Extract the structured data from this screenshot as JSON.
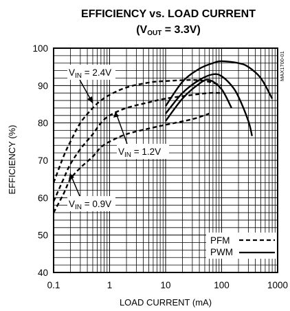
{
  "chart_data": {
    "type": "line",
    "title_line1": "EFFICIENCY vs. LOAD CURRENT",
    "title_line2_pre": "(V",
    "title_line2_sub": "OUT",
    "title_line2_post": " = 3.3V)",
    "xlabel": "LOAD CURRENT (mA)",
    "ylabel": "EFFICIENCY (%)",
    "x_scale": "log",
    "xlim": [
      0.1,
      1000
    ],
    "ylim": [
      40,
      100
    ],
    "x_ticks": [
      "0.1",
      "1",
      "10",
      "100",
      "1000"
    ],
    "y_ticks": [
      "40",
      "50",
      "60",
      "70",
      "80",
      "90",
      "100"
    ],
    "grid": true,
    "code": "MAX1700-01",
    "annotations": [
      {
        "pre": "V",
        "sub": "IN",
        "post": " = 2.4V"
      },
      {
        "pre": "V",
        "sub": "IN",
        "post": " = 1.2V"
      },
      {
        "pre": "V",
        "sub": "IN",
        "post": " = 0.9V"
      }
    ],
    "legend": {
      "placement": "bottom-right",
      "items": [
        "PFM",
        "PWM"
      ]
    },
    "series": [
      {
        "mode": "PFM",
        "x": [
          0.1,
          0.15,
          0.2,
          0.3,
          0.5,
          0.7,
          1,
          2,
          5,
          10,
          30,
          60,
          100
        ],
        "y": [
          64,
          71,
          75,
          80,
          84,
          86,
          87.5,
          89.5,
          90.8,
          91.2,
          91.5,
          91,
          90
        ]
      },
      {
        "mode": "PFM",
        "x": [
          0.1,
          0.15,
          0.2,
          0.3,
          0.5,
          0.7,
          1,
          2,
          5,
          10,
          30,
          60,
          100
        ],
        "y": [
          59,
          65,
          69,
          73,
          77,
          80,
          82,
          84,
          85.5,
          86.5,
          87.5,
          88,
          88
        ]
      },
      {
        "mode": "PFM",
        "x": [
          0.1,
          0.15,
          0.2,
          0.3,
          0.5,
          0.7,
          1,
          2,
          5,
          10,
          30,
          60
        ],
        "y": [
          56,
          61,
          65,
          68,
          71,
          73.5,
          75,
          77,
          78.5,
          79.5,
          81,
          82.5
        ]
      },
      {
        "mode": "PWM",
        "x": [
          10,
          20,
          40,
          70,
          100,
          200,
          300,
          500,
          800
        ],
        "y": [
          84.5,
          91,
          94.5,
          96,
          96.5,
          96,
          95,
          92,
          86.5
        ]
      },
      {
        "mode": "PWM",
        "x": [
          10,
          20,
          40,
          70,
          100,
          150,
          200,
          300,
          350
        ],
        "y": [
          82.5,
          88,
          91.5,
          93,
          92.5,
          90,
          87,
          80.5,
          76.5
        ]
      },
      {
        "mode": "PWM",
        "x": [
          10,
          20,
          40,
          60,
          100,
          150
        ],
        "y": [
          80.5,
          86.5,
          90.5,
          91.5,
          89,
          84
        ]
      }
    ]
  }
}
